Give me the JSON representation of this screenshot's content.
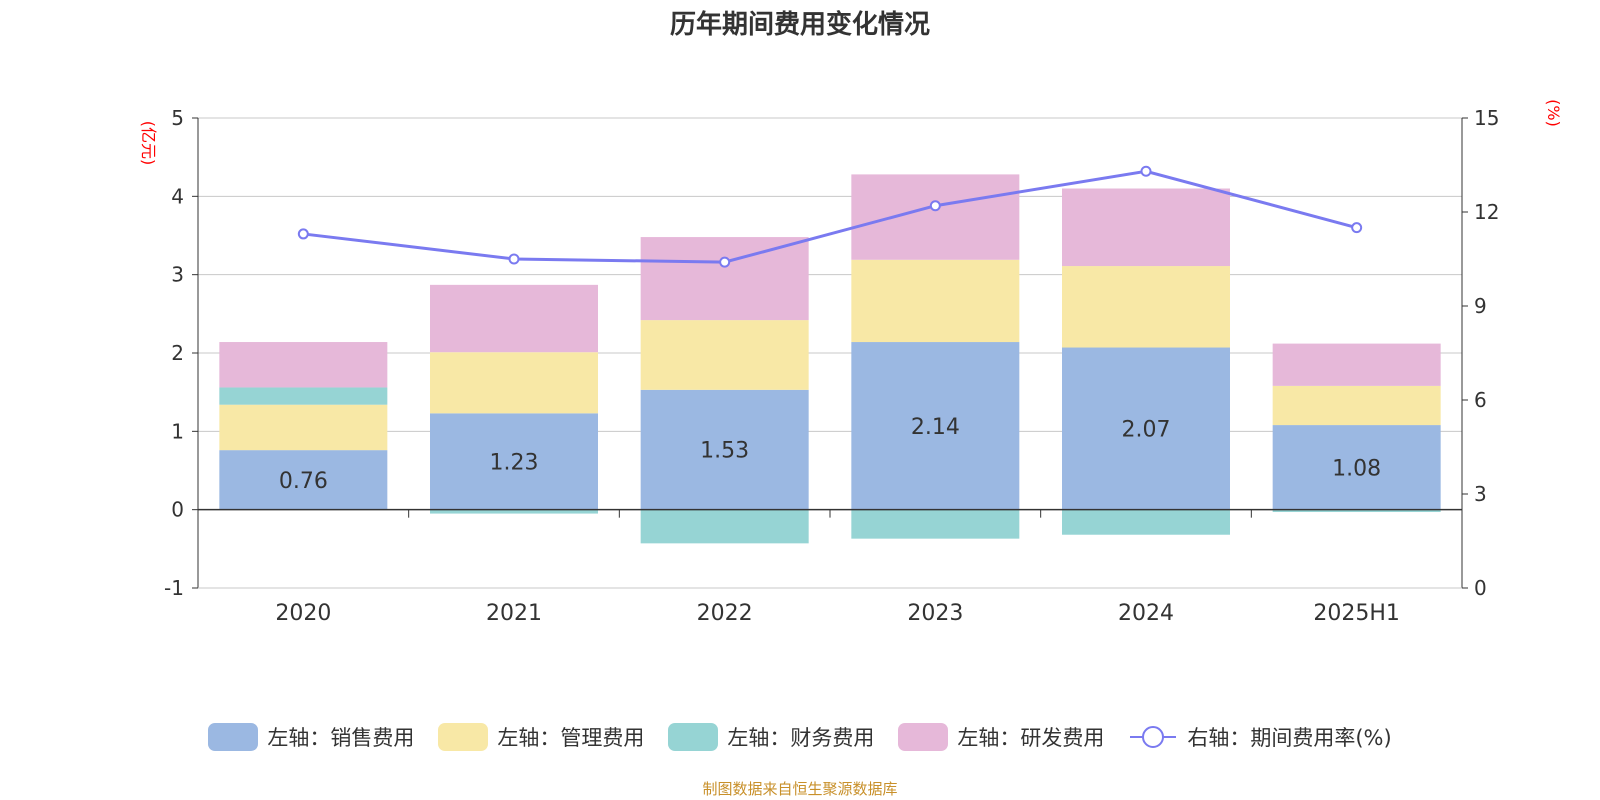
{
  "title": "历年期间费用变化情况",
  "footer": "制图数据来自恒生聚源数据库",
  "colors": {
    "sales": "#9bb8e2",
    "admin": "#f8e8a6",
    "finance": "#96d4d4",
    "rd": "#e6b8d9",
    "rate": "#7a7af0",
    "unit": "#ff0000",
    "footer": "#c8902a",
    "grid": "#c8c8c8",
    "axis": "#333333"
  },
  "legend": [
    {
      "label": "左轴：销售费用",
      "color": "#9bb8e2",
      "kind": "bar"
    },
    {
      "label": "左轴：管理费用",
      "color": "#f8e8a6",
      "kind": "bar"
    },
    {
      "label": "左轴：财务费用",
      "color": "#96d4d4",
      "kind": "bar"
    },
    {
      "label": "左轴：研发费用",
      "color": "#e6b8d9",
      "kind": "bar"
    },
    {
      "label": "右轴：期间费用率(%)",
      "color": "#7a7af0",
      "kind": "line"
    }
  ],
  "chart_data": {
    "type": "bar",
    "stacked": true,
    "categories": [
      "2020",
      "2021",
      "2022",
      "2023",
      "2024",
      "2025H1"
    ],
    "left_axis": {
      "unit": "(亿元)",
      "min": -1,
      "max": 5,
      "ticks": [
        -1,
        0,
        1,
        2,
        3,
        4,
        5
      ]
    },
    "right_axis": {
      "unit": "(%)",
      "min": 0,
      "max": 15,
      "ticks": [
        0,
        3,
        6,
        9,
        12,
        15
      ]
    },
    "grid": true,
    "legend_position": "bottom",
    "series": [
      {
        "name": "左轴：销售费用",
        "key": "sales",
        "values": [
          0.76,
          1.23,
          1.53,
          2.14,
          2.07,
          1.08
        ],
        "labels": [
          "0.76",
          "1.23",
          "1.53",
          "2.14",
          "2.07",
          "1.08"
        ]
      },
      {
        "name": "左轴：管理费用",
        "key": "admin",
        "values": [
          0.58,
          0.78,
          0.89,
          1.05,
          1.04,
          0.5
        ]
      },
      {
        "name": "左轴：财务费用",
        "key": "finance",
        "values": [
          0.22,
          -0.05,
          -0.43,
          -0.37,
          -0.32,
          -0.03
        ]
      },
      {
        "name": "左轴：研发费用",
        "key": "rd",
        "values": [
          0.58,
          0.86,
          1.06,
          1.09,
          0.99,
          0.54
        ]
      },
      {
        "name": "右轴：期间费用率(%)",
        "key": "rate",
        "axis": "right",
        "type": "line",
        "values": [
          11.3,
          10.5,
          10.4,
          12.2,
          13.3,
          11.5
        ]
      }
    ]
  }
}
